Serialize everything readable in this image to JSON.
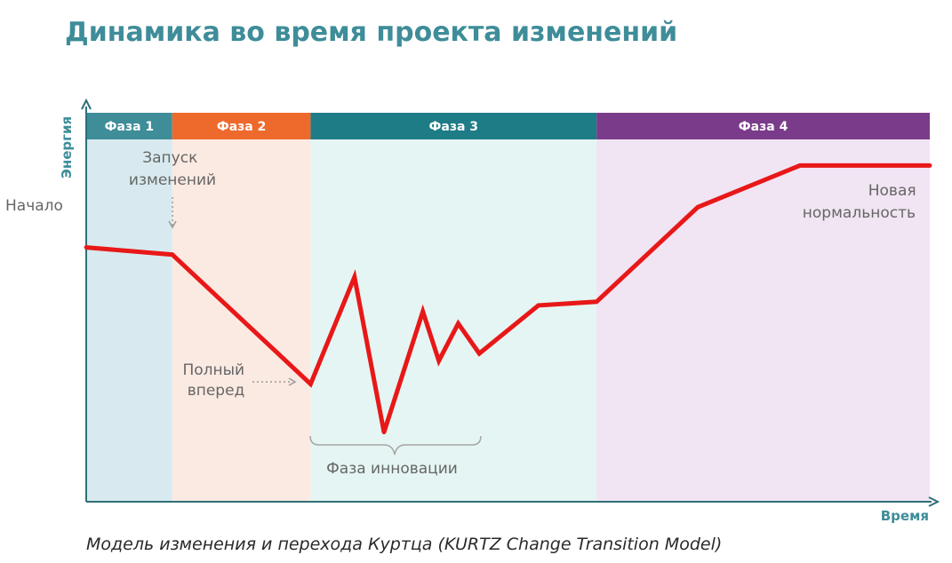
{
  "chart_data": {
    "type": "line",
    "title": "Динамика во время проекта изменений",
    "caption": "Модель изменения и перехода Куртца (KURTZ Change Transition Model)",
    "xlabel": "Время",
    "ylabel": "Энергия",
    "xlim": [
      0,
      100
    ],
    "ylim": [
      0,
      100
    ],
    "grid": false,
    "phases": [
      {
        "label": "Фаза 1",
        "start": 0,
        "end": 10.2,
        "header_color": "#3E8D99",
        "band_color": "#D8EAEF"
      },
      {
        "label": "Фаза 2",
        "start": 10.2,
        "end": 26.6,
        "header_color": "#EE6A2C",
        "band_color": "#FBEAE2"
      },
      {
        "label": "Фаза 3",
        "start": 26.6,
        "end": 60.5,
        "header_color": "#1E7C86",
        "band_color": "#E5F5F3"
      },
      {
        "label": "Фаза 4",
        "start": 60.5,
        "end": 100,
        "header_color": "#7A3C8A",
        "band_color": "#F1E4F3"
      }
    ],
    "series": [
      {
        "color": "#E81818",
        "points": [
          {
            "x": 0,
            "y": 70.2
          },
          {
            "x": 10.2,
            "y": 68.2
          },
          {
            "x": 26.6,
            "y": 32.5
          },
          {
            "x": 31.8,
            "y": 62.0
          },
          {
            "x": 35.3,
            "y": 19.2
          },
          {
            "x": 39.9,
            "y": 52.5
          },
          {
            "x": 41.8,
            "y": 38.9
          },
          {
            "x": 44.1,
            "y": 49.2
          },
          {
            "x": 46.6,
            "y": 40.9
          },
          {
            "x": 53.6,
            "y": 54.2
          },
          {
            "x": 60.5,
            "y": 55.2
          },
          {
            "x": 72.5,
            "y": 81.3
          },
          {
            "x": 84.6,
            "y": 92.8
          },
          {
            "x": 100,
            "y": 92.8
          }
        ]
      }
    ],
    "annotations": [
      {
        "id": "start",
        "lines": [
          "Начало"
        ]
      },
      {
        "id": "launch",
        "lines": [
          "Запуск",
          "изменений"
        ]
      },
      {
        "id": "full-ahead",
        "lines": [
          "Полный",
          "вперед"
        ]
      },
      {
        "id": "innovation",
        "lines": [
          "Фаза инновации"
        ]
      },
      {
        "id": "new-normal",
        "lines": [
          "Новая",
          "нормальность"
        ]
      }
    ]
  }
}
